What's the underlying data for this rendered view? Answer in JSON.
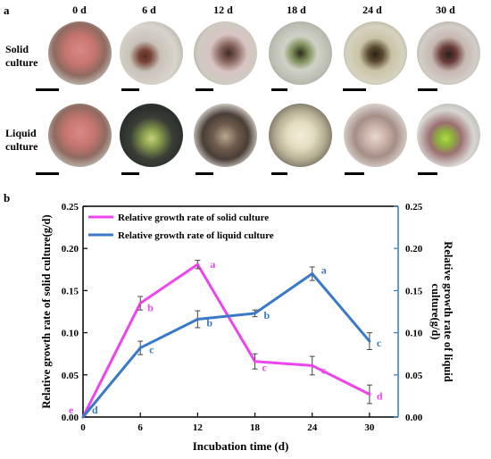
{
  "figure": {
    "panel_a_label": "a",
    "panel_b_label": "b",
    "time_points": [
      "0 d",
      "6 d",
      "12 d",
      "18 d",
      "24 d",
      "30 d"
    ],
    "rows": [
      {
        "label_line1": "Solid",
        "label_line2": "culture"
      },
      {
        "label_line1": "Liquid",
        "label_line2": "culture"
      }
    ]
  },
  "chart_data": {
    "type": "line",
    "x": [
      0,
      6,
      12,
      18,
      24,
      30
    ],
    "xlabel": "Incubation time (d)",
    "ylabel_left": "Relative growth rate of solid culture(g/d)",
    "ylabel_right_line1": "Relative growth rate of liquid",
    "ylabel_right_line2": "culture(g/d)",
    "ylim": [
      0,
      0.25
    ],
    "yticks": [
      "0.00",
      "0.05",
      "0.10",
      "0.15",
      "0.20",
      "0.25"
    ],
    "xticks": [
      "0",
      "6",
      "12",
      "18",
      "24",
      "30"
    ],
    "legend_position": "top-left",
    "series": [
      {
        "name": "Relative growth rate of solid culture",
        "color": "#ee44ee",
        "values": [
          0,
          0.135,
          0.181,
          0.066,
          0.061,
          0.027
        ],
        "errors": [
          0,
          0.008,
          0.005,
          0.009,
          0.011,
          0.011
        ],
        "letters": [
          "e",
          "b",
          "a",
          "c",
          "c",
          "d"
        ]
      },
      {
        "name": "Relative growth rate of liquid culture",
        "color": "#3a78c8",
        "values": [
          0,
          0.082,
          0.116,
          0.123,
          0.17,
          0.09
        ],
        "errors": [
          0,
          0.008,
          0.01,
          0.004,
          0.008,
          0.01
        ],
        "letters": [
          "d",
          "c",
          "b",
          "b",
          "a",
          "c"
        ]
      }
    ],
    "left_axis_color": "#000000",
    "right_axis_color": "#2f7fc0"
  }
}
